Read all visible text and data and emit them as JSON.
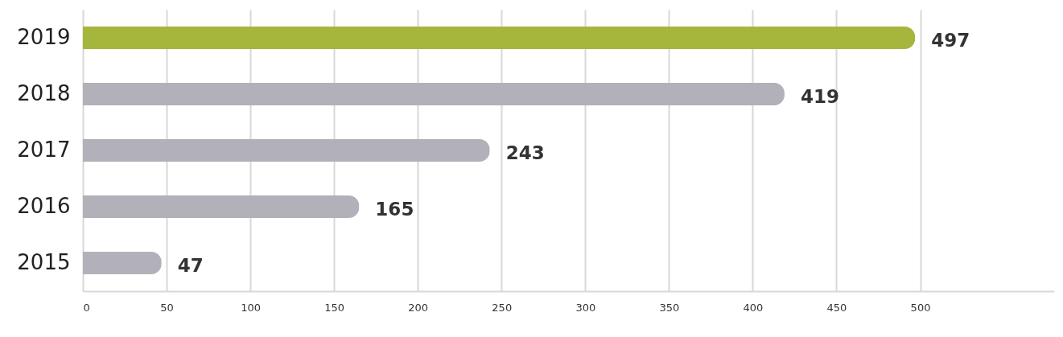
{
  "chart_data": {
    "type": "bar",
    "orientation": "horizontal",
    "categories": [
      "2019",
      "2018",
      "2017",
      "2016",
      "2015"
    ],
    "values": [
      497,
      419,
      243,
      165,
      47
    ],
    "colors": [
      "#a6b63c",
      "#b2b1b9",
      "#b2b1b9",
      "#b2b1b9",
      "#b2b1b9"
    ],
    "xlim": [
      0,
      580
    ],
    "xticks": [
      0,
      50,
      100,
      150,
      200,
      250,
      300,
      350,
      400,
      450,
      500
    ],
    "grid": "x",
    "data_labels": true
  }
}
